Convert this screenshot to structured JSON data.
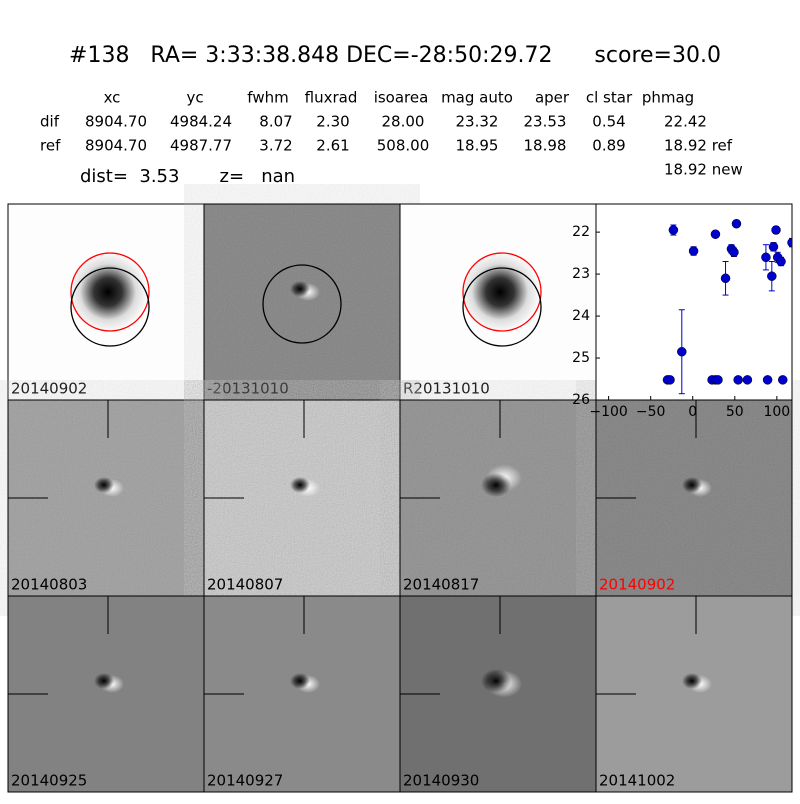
{
  "header": {
    "title": "#138   RA= 3:33:38.848 DEC=-28:50:29.72      score=30.0"
  },
  "table": {
    "header": [
      "xc",
      "yc",
      "fwhm",
      "fluxrad",
      "isoarea",
      "mag auto",
      "aper",
      "cl star",
      "phmag"
    ],
    "rows": [
      [
        "dif",
        "8904.70",
        "4984.24",
        "8.07",
        "2.30",
        "28.00",
        "23.32",
        "23.53",
        "0.54",
        "22.42"
      ],
      [
        "ref",
        "8904.70",
        "4987.77",
        "3.72",
        "2.61",
        "508.00",
        "18.95",
        "18.98",
        "0.89",
        "18.92 ref"
      ]
    ],
    "extra": "18.92 new"
  },
  "dist": "dist=  3.53       z=   nan",
  "panels": [
    {
      "label": "20140902"
    },
    {
      "label": "-20131010"
    },
    {
      "label": "R20131010"
    },
    {
      "label": "20140803"
    },
    {
      "label": "20140807"
    },
    {
      "label": "20140817"
    },
    {
      "label": "20140902",
      "label_color": "#ff0000"
    },
    {
      "label": "20140925"
    },
    {
      "label": "20140927"
    },
    {
      "label": "20140930"
    },
    {
      "label": "20141002"
    }
  ],
  "chart_data": {
    "type": "scatter",
    "color": "#0000cc",
    "x": [
      -23,
      1,
      27,
      52,
      39,
      46,
      49,
      87,
      96,
      94,
      99,
      101,
      105,
      118,
      -13,
      -30,
      -27,
      23,
      27,
      30,
      54,
      65,
      89,
      107
    ],
    "values": [
      21.95,
      22.45,
      22.05,
      21.8,
      23.1,
      22.4,
      22.48,
      22.6,
      22.35,
      23.05,
      21.95,
      22.6,
      22.7,
      22.25,
      24.85,
      25.52,
      25.52,
      25.52,
      25.52,
      25.52,
      25.52,
      25.52,
      25.52,
      25.52
    ],
    "errors": [
      0.12,
      0.1,
      0.08,
      0.08,
      0.4,
      0.1,
      0.1,
      0.3,
      0.1,
      0.35,
      0.08,
      0.12,
      0.1,
      0.1,
      1.0,
      null,
      null,
      null,
      null,
      null,
      null,
      null,
      null,
      null
    ],
    "xlim": [
      -115,
      118
    ],
    "ylim": [
      26,
      21.33
    ],
    "xticks": [
      {
        "value": -100,
        "label": "−100"
      },
      {
        "value": -50,
        "label": "−50"
      },
      0,
      50,
      100
    ],
    "yticks": [
      22,
      23,
      24,
      25,
      26
    ]
  }
}
